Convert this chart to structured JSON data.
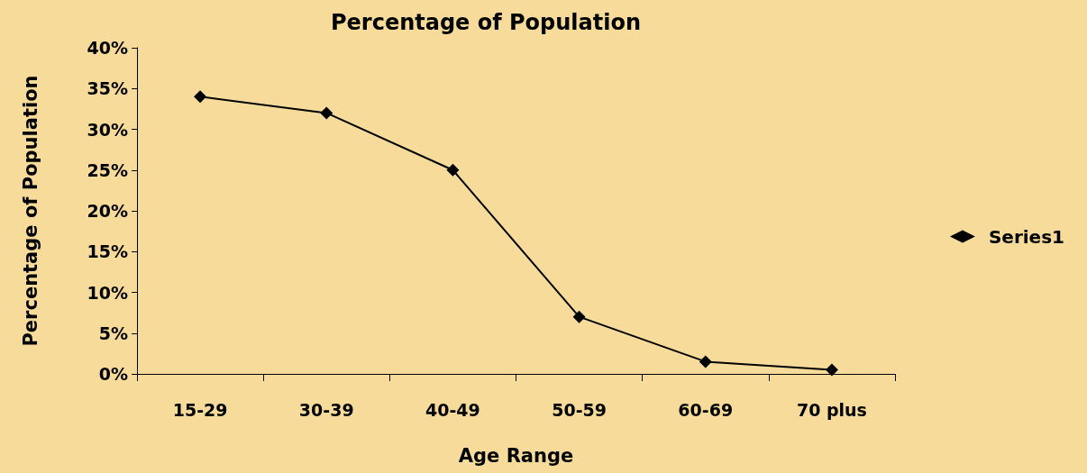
{
  "chart_data": {
    "type": "line",
    "title": "Percentage of Population",
    "xlabel": "Age Range",
    "ylabel": "Percentage of Population",
    "categories": [
      "15-29",
      "30-39",
      "40-49",
      "50-59",
      "60-69",
      "70 plus"
    ],
    "series": [
      {
        "name": "Series1",
        "color": "#000000",
        "values": [
          34,
          32,
          25,
          7,
          1.5,
          0.5
        ]
      }
    ],
    "ylim": [
      0,
      40
    ],
    "yticks": [
      {
        "value": 0,
        "label": "0%"
      },
      {
        "value": 5,
        "label": "5%"
      },
      {
        "value": 10,
        "label": "10%"
      },
      {
        "value": 15,
        "label": "15%"
      },
      {
        "value": 20,
        "label": "20%"
      },
      {
        "value": 25,
        "label": "25%"
      },
      {
        "value": 30,
        "label": "30%"
      },
      {
        "value": 35,
        "label": "35%"
      },
      {
        "value": 40,
        "label": "40%"
      }
    ],
    "grid": false,
    "legend": "right",
    "marker": "diamond",
    "line_style": "solid"
  }
}
